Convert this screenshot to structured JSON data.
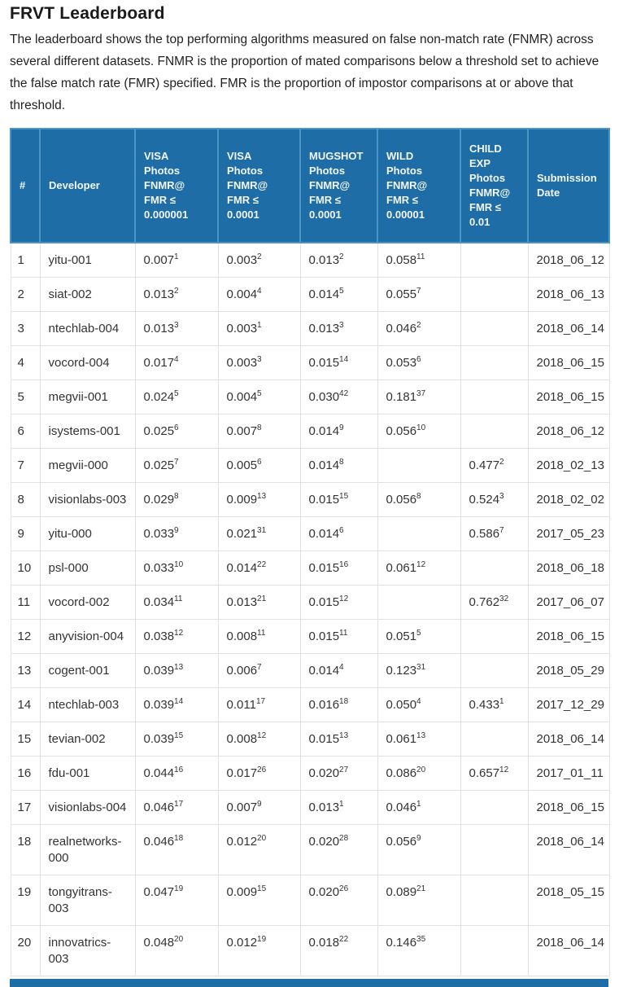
{
  "page": {
    "title": "FRVT Leaderboard",
    "description": "The leaderboard shows the top performing algorithms measured on false non-match rate (FNMR) across several different datasets. FNMR is the proportion of mated comparisons below a threshold set to achieve the false match rate (FMR) specified. FMR is the proportion of impostor comparisons at or above that threshold."
  },
  "colors": {
    "header_bg": "#1f6da6",
    "header_border": "#4a94c6",
    "row_border": "#e2e2e2",
    "text": "#333333"
  },
  "table": {
    "columns": [
      "#",
      "Developer",
      "VISA\nPhotos\nFNMR@\nFMR ≤\n0.000001",
      "VISA\nPhotos\nFNMR@\nFMR ≤\n0.0001",
      "MUGSHOT\nPhotos\nFNMR@\nFMR ≤\n0.0001",
      "WILD\nPhotos\nFNMR@\nFMR ≤\n0.00001",
      "CHILD\nEXP\nPhotos\nFNMR@\nFMR ≤\n0.01",
      "Submission\nDate"
    ],
    "rows": [
      {
        "rank": "1",
        "developer": "yitu-001",
        "metrics": [
          {
            "v": "0.007",
            "s": "1"
          },
          {
            "v": "0.003",
            "s": "2"
          },
          {
            "v": "0.013",
            "s": "2"
          },
          {
            "v": "0.058",
            "s": "11"
          },
          null
        ],
        "date": "2018_06_12"
      },
      {
        "rank": "2",
        "developer": "siat-002",
        "metrics": [
          {
            "v": "0.013",
            "s": "2"
          },
          {
            "v": "0.004",
            "s": "4"
          },
          {
            "v": "0.014",
            "s": "5"
          },
          {
            "v": "0.055",
            "s": "7"
          },
          null
        ],
        "date": "2018_06_13"
      },
      {
        "rank": "3",
        "developer": "ntechlab-004",
        "metrics": [
          {
            "v": "0.013",
            "s": "3"
          },
          {
            "v": "0.003",
            "s": "1"
          },
          {
            "v": "0.013",
            "s": "3"
          },
          {
            "v": "0.046",
            "s": "2"
          },
          null
        ],
        "date": "2018_06_14"
      },
      {
        "rank": "4",
        "developer": "vocord-004",
        "metrics": [
          {
            "v": "0.017",
            "s": "4"
          },
          {
            "v": "0.003",
            "s": "3"
          },
          {
            "v": "0.015",
            "s": "14"
          },
          {
            "v": "0.053",
            "s": "6"
          },
          null
        ],
        "date": "2018_06_15"
      },
      {
        "rank": "5",
        "developer": "megvii-001",
        "metrics": [
          {
            "v": "0.024",
            "s": "5"
          },
          {
            "v": "0.004",
            "s": "5"
          },
          {
            "v": "0.030",
            "s": "42"
          },
          {
            "v": "0.181",
            "s": "37"
          },
          null
        ],
        "date": "2018_06_15"
      },
      {
        "rank": "6",
        "developer": "isystems-001",
        "metrics": [
          {
            "v": "0.025",
            "s": "6"
          },
          {
            "v": "0.007",
            "s": "8"
          },
          {
            "v": "0.014",
            "s": "9"
          },
          {
            "v": "0.056",
            "s": "10"
          },
          null
        ],
        "date": "2018_06_12"
      },
      {
        "rank": "7",
        "developer": "megvii-000",
        "metrics": [
          {
            "v": "0.025",
            "s": "7"
          },
          {
            "v": "0.005",
            "s": "6"
          },
          {
            "v": "0.014",
            "s": "8"
          },
          null,
          {
            "v": "0.477",
            "s": "2"
          }
        ],
        "date": "2018_02_13"
      },
      {
        "rank": "8",
        "developer": "visionlabs-003",
        "metrics": [
          {
            "v": "0.029",
            "s": "8"
          },
          {
            "v": "0.009",
            "s": "13"
          },
          {
            "v": "0.015",
            "s": "15"
          },
          {
            "v": "0.056",
            "s": "8"
          },
          {
            "v": "0.524",
            "s": "3"
          }
        ],
        "date": "2018_02_02"
      },
      {
        "rank": "9",
        "developer": "yitu-000",
        "metrics": [
          {
            "v": "0.033",
            "s": "9"
          },
          {
            "v": "0.021",
            "s": "31"
          },
          {
            "v": "0.014",
            "s": "6"
          },
          null,
          {
            "v": "0.586",
            "s": "7"
          }
        ],
        "date": "2017_05_23"
      },
      {
        "rank": "10",
        "developer": "psl-000",
        "metrics": [
          {
            "v": "0.033",
            "s": "10"
          },
          {
            "v": "0.014",
            "s": "22"
          },
          {
            "v": "0.015",
            "s": "16"
          },
          {
            "v": "0.061",
            "s": "12"
          },
          null
        ],
        "date": "2018_06_18"
      },
      {
        "rank": "11",
        "developer": "vocord-002",
        "metrics": [
          {
            "v": "0.034",
            "s": "11"
          },
          {
            "v": "0.013",
            "s": "21"
          },
          {
            "v": "0.015",
            "s": "12"
          },
          null,
          {
            "v": "0.762",
            "s": "32"
          }
        ],
        "date": "2017_06_07"
      },
      {
        "rank": "12",
        "developer": "anyvision-004",
        "metrics": [
          {
            "v": "0.038",
            "s": "12"
          },
          {
            "v": "0.008",
            "s": "11"
          },
          {
            "v": "0.015",
            "s": "11"
          },
          {
            "v": "0.051",
            "s": "5"
          },
          null
        ],
        "date": "2018_06_15"
      },
      {
        "rank": "13",
        "developer": "cogent-001",
        "metrics": [
          {
            "v": "0.039",
            "s": "13"
          },
          {
            "v": "0.006",
            "s": "7"
          },
          {
            "v": "0.014",
            "s": "4"
          },
          {
            "v": "0.123",
            "s": "31"
          },
          null
        ],
        "date": "2018_05_29"
      },
      {
        "rank": "14",
        "developer": "ntechlab-003",
        "metrics": [
          {
            "v": "0.039",
            "s": "14"
          },
          {
            "v": "0.011",
            "s": "17"
          },
          {
            "v": "0.016",
            "s": "18"
          },
          {
            "v": "0.050",
            "s": "4"
          },
          {
            "v": "0.433",
            "s": "1"
          }
        ],
        "date": "2017_12_29"
      },
      {
        "rank": "15",
        "developer": "tevian-002",
        "metrics": [
          {
            "v": "0.039",
            "s": "15"
          },
          {
            "v": "0.008",
            "s": "12"
          },
          {
            "v": "0.015",
            "s": "13"
          },
          {
            "v": "0.061",
            "s": "13"
          },
          null
        ],
        "date": "2018_06_14"
      },
      {
        "rank": "16",
        "developer": "fdu-001",
        "metrics": [
          {
            "v": "0.044",
            "s": "16"
          },
          {
            "v": "0.017",
            "s": "26"
          },
          {
            "v": "0.020",
            "s": "27"
          },
          {
            "v": "0.086",
            "s": "20"
          },
          {
            "v": "0.657",
            "s": "12"
          }
        ],
        "date": "2017_01_11"
      },
      {
        "rank": "17",
        "developer": "visionlabs-004",
        "metrics": [
          {
            "v": "0.046",
            "s": "17"
          },
          {
            "v": "0.007",
            "s": "9"
          },
          {
            "v": "0.013",
            "s": "1"
          },
          {
            "v": "0.046",
            "s": "1"
          },
          null
        ],
        "date": "2018_06_15"
      },
      {
        "rank": "18",
        "developer": "realnetworks-000",
        "metrics": [
          {
            "v": "0.046",
            "s": "18"
          },
          {
            "v": "0.012",
            "s": "20"
          },
          {
            "v": "0.020",
            "s": "28"
          },
          {
            "v": "0.056",
            "s": "9"
          },
          null
        ],
        "date": "2018_06_14"
      },
      {
        "rank": "19",
        "developer": "tongyitrans-003",
        "metrics": [
          {
            "v": "0.047",
            "s": "19"
          },
          {
            "v": "0.009",
            "s": "15"
          },
          {
            "v": "0.020",
            "s": "26"
          },
          {
            "v": "0.089",
            "s": "21"
          },
          null
        ],
        "date": "2018_05_15"
      },
      {
        "rank": "20",
        "developer": "innovatrics-003",
        "metrics": [
          {
            "v": "0.048",
            "s": "20"
          },
          {
            "v": "0.012",
            "s": "19"
          },
          {
            "v": "0.018",
            "s": "22"
          },
          {
            "v": "0.146",
            "s": "35"
          },
          null
        ],
        "date": "2018_06_14"
      }
    ]
  }
}
